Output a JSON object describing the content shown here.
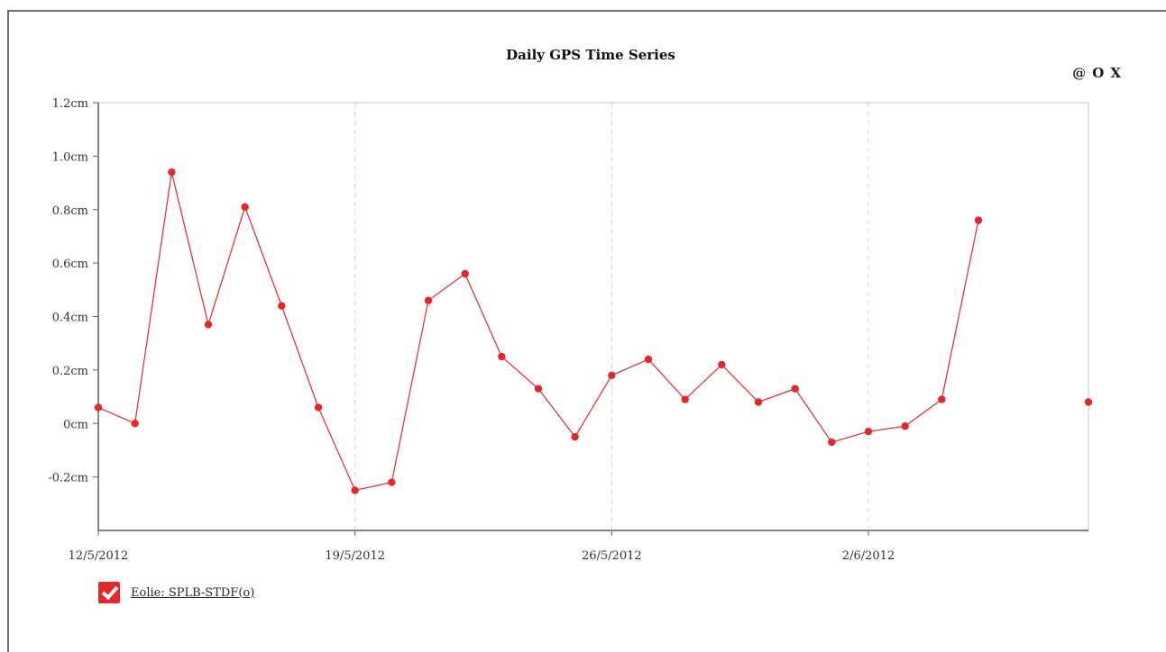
{
  "chart_data": {
    "type": "line",
    "title": "Daily GPS Time Series",
    "xlabel": "",
    "ylabel": "",
    "x_tick_labels": [
      "12/5/2012",
      "19/5/2012",
      "26/5/2012",
      "2/6/2012"
    ],
    "y_tick_values": [
      -0.2,
      0.0,
      0.2,
      0.4,
      0.6,
      0.8,
      1.0,
      1.2
    ],
    "y_tick_labels": [
      "-0.2cm",
      "0cm",
      "0.2cm",
      "0.4cm",
      "0.6cm",
      "0.8cm",
      "1.0cm",
      "1.2cm"
    ],
    "ylim": [
      -0.4,
      1.2
    ],
    "xlim": [
      "12/5/2012",
      "8/6/2012"
    ],
    "grid": "vertical dashed lines at weekly ticks",
    "series": [
      {
        "name": "Eolie: SPLB-STDF(o)",
        "color": "#e3282b",
        "values": [
          0.06,
          0.0,
          0.94,
          0.37,
          0.81,
          0.44,
          0.06,
          -0.25,
          -0.22,
          0.46,
          0.56,
          0.25,
          0.13,
          -0.05,
          0.18,
          0.24,
          0.09,
          0.22,
          0.08,
          0.13,
          -0.07,
          -0.03,
          -0.01,
          0.09,
          0.76,
          null,
          null,
          0.08
        ],
        "dates": [
          "12/5/2012",
          "13/5/2012",
          "14/5/2012",
          "15/5/2012",
          "16/5/2012",
          "17/5/2012",
          "18/5/2012",
          "19/5/2012",
          "20/5/2012",
          "21/5/2012",
          "22/5/2012",
          "23/5/2012",
          "24/5/2012",
          "25/5/2012",
          "26/5/2012",
          "27/5/2012",
          "28/5/2012",
          "29/5/2012",
          "30/5/2012",
          "31/5/2012",
          "1/6/2012",
          "2/6/2012",
          "3/6/2012",
          "4/6/2012",
          "5/6/2012",
          "6/6/2012",
          "7/6/2012",
          "8/6/2012"
        ]
      }
    ]
  },
  "controls": {
    "link_label": "@",
    "zoom_label": "O",
    "close_label": "X"
  },
  "legend": {
    "checkbox_checked": true,
    "entry_label": "Eolie: SPLB-STDF(o)"
  }
}
